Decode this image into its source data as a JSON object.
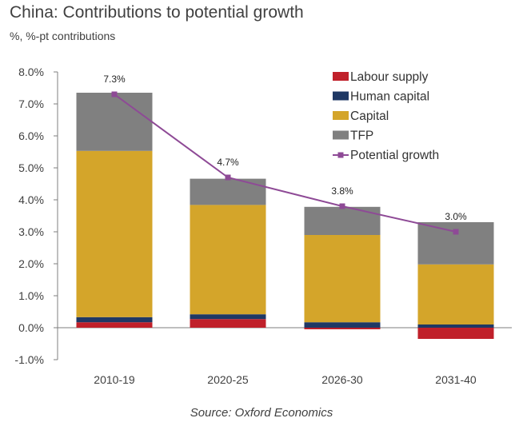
{
  "chart_data": {
    "type": "bar",
    "stacked": true,
    "title": "China: Contributions to potential growth",
    "subtitle": "%, %-pt contributions",
    "source": "Source: Oxford Economics",
    "categories": [
      "2010-19",
      "2020-25",
      "2026-30",
      "2031-40"
    ],
    "ylim": [
      -1.0,
      8.0
    ],
    "yticks": [
      -1.0,
      0.0,
      1.0,
      2.0,
      3.0,
      4.0,
      5.0,
      6.0,
      7.0,
      8.0
    ],
    "ytick_labels": [
      "-1.0%",
      "0.0%",
      "1.0%",
      "2.0%",
      "3.0%",
      "4.0%",
      "5.0%",
      "6.0%",
      "7.0%",
      "8.0%"
    ],
    "series": [
      {
        "name": "Labour supply",
        "color": "#c0202a",
        "values": [
          0.17,
          0.27,
          -0.05,
          -0.35
        ]
      },
      {
        "name": "Human capital",
        "color": "#1f3864",
        "values": [
          0.16,
          0.15,
          0.17,
          0.1
        ]
      },
      {
        "name": "Capital",
        "color": "#d4a52a",
        "values": [
          5.2,
          3.42,
          2.73,
          1.88
        ]
      },
      {
        "name": "TFP",
        "color": "#808080",
        "values": [
          1.82,
          0.82,
          0.88,
          1.32
        ]
      }
    ],
    "line": {
      "name": "Potential growth",
      "color": "#8e4a96",
      "values": [
        7.3,
        4.7,
        3.8,
        3.0
      ]
    },
    "data_labels": [
      "7.3%",
      "4.7%",
      "3.8%",
      "3.0%"
    ],
    "legend_position": "top-right"
  }
}
